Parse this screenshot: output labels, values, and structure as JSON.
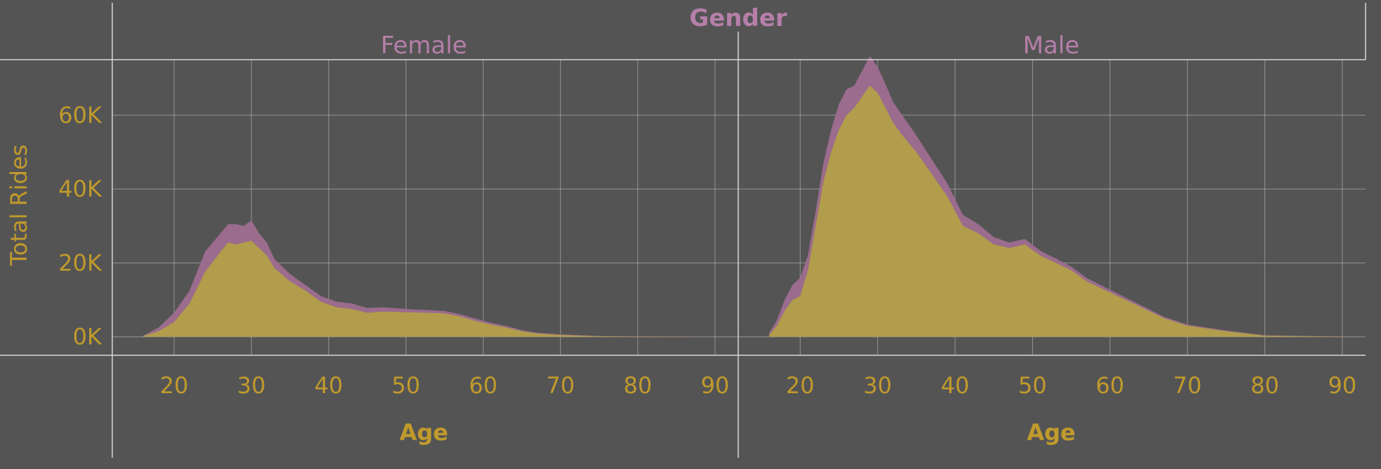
{
  "colors": {
    "background": "#545454",
    "grid": "#a9a9a9",
    "border": "#d6d6d6",
    "header_text": "#b57fa8",
    "axis_text": "#c09a2c",
    "total_fill": "#9b6c8d",
    "yellow_fill": "#b19d4b"
  },
  "chart_data": {
    "type": "area",
    "stacked": true,
    "facet_title": "Gender",
    "ylabel": "Total Rides",
    "xlabel": "Age",
    "x_ticks": [
      "20",
      "30",
      "40",
      "50",
      "60",
      "70",
      "80",
      "90"
    ],
    "y_ticks": [
      "0K",
      "20K",
      "40K",
      "60K"
    ],
    "xlim": [
      12,
      93
    ],
    "ylim": [
      -5000,
      75000
    ],
    "grid": true,
    "panels": [
      {
        "label": "Female",
        "x": [
          16,
          18,
          20,
          22,
          24,
          26,
          27,
          28,
          29,
          30,
          31,
          32,
          33,
          35,
          37,
          39,
          41,
          43,
          45,
          47,
          49,
          51,
          53,
          55,
          57,
          59,
          61,
          63,
          65,
          67,
          70,
          75,
          80,
          90
        ],
        "series": [
          {
            "values": [
              200,
              1500,
              4000,
              9000,
              17500,
              23000,
              25500,
              25000,
              25500,
              26000,
              24000,
              22000,
              18500,
              15000,
              12500,
              9500,
              8000,
              7500,
              6500,
              6800,
              6700,
              6600,
              6500,
              6300,
              5500,
              4300,
              3300,
              2500,
              1500,
              900,
              500,
              150,
              60,
              20
            ]
          },
          {
            "values": [
              100,
              1000,
              2500,
              3500,
              5500,
              5000,
              5000,
              5500,
              4500,
              5500,
              4000,
              3500,
              2500,
              2000,
              1500,
              1500,
              1500,
              1500,
              1300,
              1200,
              1000,
              800,
              700,
              700,
              600,
              600,
              500,
              400,
              300,
              200,
              150,
              50,
              20,
              10
            ]
          }
        ]
      },
      {
        "label": "Male",
        "x": [
          16,
          17,
          18,
          19,
          20,
          21,
          22,
          23,
          24,
          25,
          26,
          27,
          28,
          29,
          30,
          31,
          32,
          33,
          35,
          37,
          39,
          41,
          43,
          45,
          47,
          49,
          51,
          53,
          55,
          57,
          59,
          61,
          63,
          65,
          67,
          70,
          75,
          80,
          90
        ],
        "series": [
          {
            "values": [
              500,
              3000,
              7000,
              10000,
              11000,
              18000,
              30000,
              42000,
              50000,
              56000,
              60000,
              62000,
              65000,
              68000,
              66000,
              62000,
              58000,
              55000,
              50000,
              44000,
              38000,
              30000,
              28000,
              25000,
              24000,
              25000,
              22000,
              20000,
              18000,
              15000,
              13000,
              11000,
              9000,
              7000,
              5000,
              3000,
              1500,
              300,
              50
            ]
          },
          {
            "values": [
              500,
              1500,
              3000,
              4000,
              5000,
              4000,
              4000,
              5000,
              6000,
              7000,
              7000,
              6000,
              7000,
              8000,
              7000,
              6500,
              5500,
              5500,
              4500,
              4000,
              3500,
              3000,
              2500,
              2000,
              1500,
              1500,
              1300,
              1200,
              1000,
              900,
              800,
              700,
              600,
              500,
              400,
              300,
              200,
              100,
              30
            ]
          }
        ]
      }
    ]
  }
}
